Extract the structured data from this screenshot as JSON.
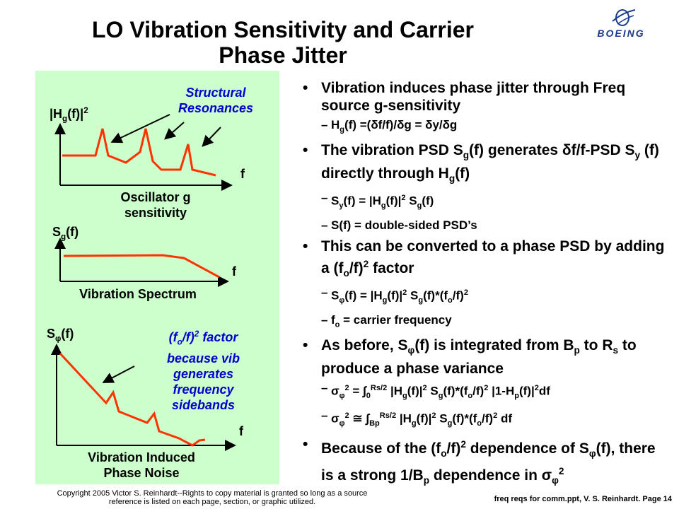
{
  "slide": {
    "title_line1": "LO Vibration Sensitivity and Carrier",
    "title_line2": "Phase Jitter",
    "logo_text": "BOEING"
  },
  "colors": {
    "panel_bg": "#ccffcc",
    "curve": "#ff3300",
    "note_text": "#0000cc",
    "axis": "#000000"
  },
  "left_panel": {
    "chart1": {
      "y_label": "|Hg(f)|2",
      "x_label": "f",
      "annotation_line1": "Structural",
      "annotation_line2": "Resonances",
      "caption_line1": "Oscillator g",
      "caption_line2": "sensitivity"
    },
    "chart2": {
      "y_label": "Sg(f)",
      "x_label": "f",
      "caption": "Vibration Spectrum"
    },
    "chart3": {
      "y_label": "Sφ(f)",
      "x_label": "f",
      "annotation_line1": "(fo/f)2 factor",
      "annotation_line2": "because vib",
      "annotation_line3": "generates",
      "annotation_line4": "frequency",
      "annotation_line5": "sidebands",
      "caption_line1": "Vibration Induced",
      "caption_line2": "Phase Noise"
    }
  },
  "bullets": [
    {
      "text": "Vibration induces phase jitter through Freq source g-sensitivity",
      "sub": [
        "Hg(f) =(δf/f)/δg = δy/δg"
      ]
    },
    {
      "text": "The vibration PSD Sg(f) generates δf/f-PSD Sy (f) directly through Hg(f)",
      "sub": [
        "Sy(f) = |Hg(f)|2 Sg(f)",
        "S(f) = double-sided PSD’s"
      ]
    },
    {
      "text": "This can be converted to a phase PSD by adding a (fo/f)2 factor",
      "sub": [
        "Sφ(f) = |Hg(f)|2 Sg(f)*(fo/f)2",
        "fo = carrier frequency"
      ]
    },
    {
      "text": "As before, Sφ(f) is integrated from Bp to Rs to produce a phase variance",
      "sub": [
        "σφ2 = ∫0Rs/2 |Hg(f)|2 Sg(f)*(fo/f)2 |1-Hp(f)|2df",
        "σφ2 ≅ ∫BpRs/2 |Hg(f)|2 Sg(f)*(fo/f)2 df"
      ]
    },
    {
      "text": "Because of the (fo/f)2 dependence of Sφ(f), there is a strong 1/Bp dependence in σφ2",
      "sub": []
    }
  ],
  "footer": {
    "copyright_line1": "Copyright 2005 Victor S. Reinhardt--Rights to copy material is granted so long as a source",
    "copyright_line2": "reference is listed on each page, section, or graphic utilized.",
    "page_ref": "freq reqs for comm.ppt,  V. S. Reinhardt. Page 14"
  }
}
